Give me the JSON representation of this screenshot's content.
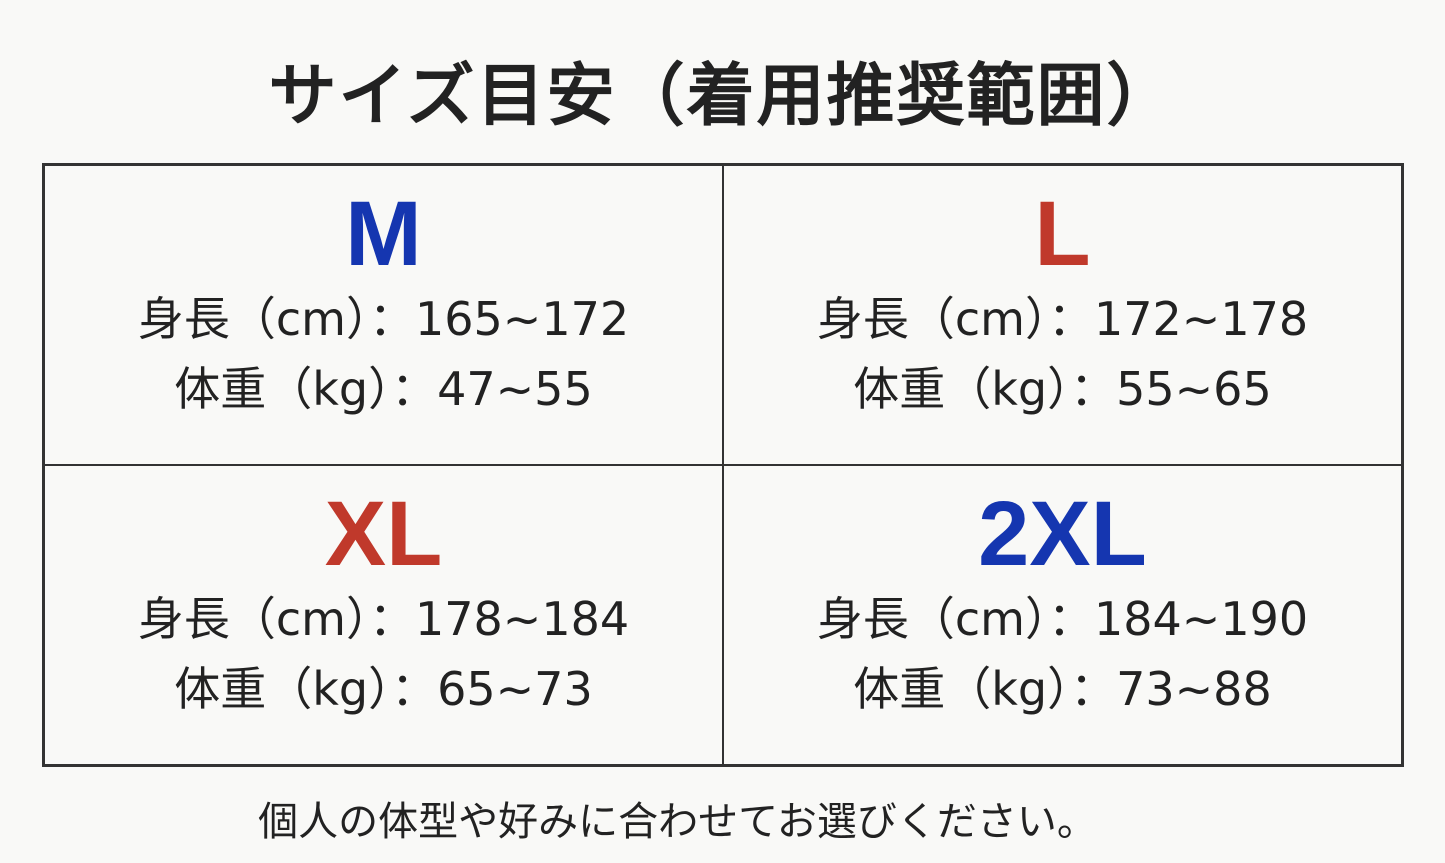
{
  "title": "サイズ目安（着用推奨範囲）",
  "colors": {
    "blue": "#1536b0",
    "red": "#c0392b"
  },
  "sizes": [
    {
      "label": "M",
      "color": "#1536b0",
      "height": "身長（cm）：165~172",
      "weight": "体重（kg）：47~55"
    },
    {
      "label": "L",
      "color": "#c0392b",
      "height": "身長（cm）：172~178",
      "weight": "体重（kg）：55~65"
    },
    {
      "label": "XL",
      "color": "#c0392b",
      "height": "身長（cm）：178~184",
      "weight": "体重（kg）：65~73"
    },
    {
      "label": "2XL",
      "color": "#1536b0",
      "height": "身長（cm）：184~190",
      "weight": "体重（kg）：73~88"
    }
  ],
  "note": "個人の体型や好みに合わせてお選びください。"
}
